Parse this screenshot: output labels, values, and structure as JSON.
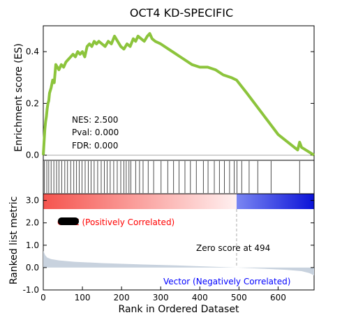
{
  "chart_data": {
    "type": "line",
    "title": "OCT4 KD-SPECIFIC",
    "top_panel": {
      "ylabel": "Enrichment score (ES)",
      "ylim": [
        -0.02,
        0.5
      ],
      "yticks": [
        "0.0",
        "0.2",
        "0.4"
      ],
      "ytick_values": [
        0.0,
        0.2,
        0.4
      ],
      "series": [
        {
          "color": "#8cc43c",
          "x": [
            0,
            2,
            4,
            6,
            8,
            10,
            12,
            14,
            16,
            20,
            24,
            28,
            32,
            36,
            40,
            46,
            52,
            58,
            64,
            70,
            76,
            82,
            88,
            94,
            100,
            106,
            112,
            118,
            124,
            130,
            136,
            142,
            150,
            158,
            166,
            174,
            182,
            190,
            198,
            206,
            214,
            222,
            230,
            236,
            242,
            250,
            258,
            266,
            272,
            278,
            286,
            300,
            320,
            340,
            360,
            380,
            400,
            420,
            440,
            460,
            480,
            494,
            520,
            560,
            600,
            650,
            655,
            660,
            692
          ],
          "values": [
            0.0,
            0.05,
            0.1,
            0.13,
            0.15,
            0.18,
            0.2,
            0.21,
            0.24,
            0.26,
            0.29,
            0.28,
            0.35,
            0.34,
            0.33,
            0.35,
            0.34,
            0.36,
            0.37,
            0.38,
            0.39,
            0.38,
            0.4,
            0.39,
            0.4,
            0.38,
            0.42,
            0.43,
            0.42,
            0.44,
            0.43,
            0.44,
            0.43,
            0.42,
            0.44,
            0.43,
            0.46,
            0.44,
            0.42,
            0.41,
            0.43,
            0.42,
            0.45,
            0.44,
            0.46,
            0.45,
            0.44,
            0.46,
            0.47,
            0.45,
            0.44,
            0.43,
            0.41,
            0.39,
            0.37,
            0.35,
            0.34,
            0.34,
            0.33,
            0.31,
            0.3,
            0.29,
            0.24,
            0.16,
            0.08,
            0.02,
            0.05,
            0.03,
            0.0
          ]
        }
      ],
      "stats": {
        "nes": "NES: 2.500",
        "pval": "Pval: 0.000",
        "fdr": "FDR: 0.000"
      }
    },
    "hit_ranks": [
      3,
      9,
      14,
      20,
      27,
      34,
      40,
      47,
      55,
      62,
      70,
      78,
      85,
      92,
      99,
      107,
      115,
      122,
      130,
      139,
      148,
      156,
      163,
      171,
      180,
      189,
      198,
      206,
      212,
      219,
      224,
      236,
      246,
      255,
      268,
      282,
      301,
      318,
      333,
      347,
      362,
      376,
      391,
      409,
      421,
      437,
      450,
      463,
      476,
      488,
      495,
      507,
      526,
      548,
      582,
      655
    ],
    "bottom_panel": {
      "ylabel": "Ranked list metric",
      "ylim": [
        -1.0,
        3.3
      ],
      "yticks": [
        "3.0",
        "2.0",
        "1.0",
        "0.0",
        "-1.0"
      ],
      "ytick_values": [
        3.0,
        2.0,
        1.0,
        0.0,
        -1.0
      ],
      "positive_label": "CLOE (Positively Correlated)",
      "negative_label": "Vector (Negatively Correlated)",
      "zero_label": "Zero score at 494",
      "zero_rank": 494,
      "metric_x": [
        0,
        5,
        10,
        20,
        40,
        80,
        150,
        250,
        350,
        450,
        494,
        560,
        620,
        660,
        680,
        692
      ],
      "metric_values": [
        0.75,
        0.55,
        0.45,
        0.38,
        0.32,
        0.26,
        0.2,
        0.14,
        0.09,
        0.03,
        0.0,
        -0.05,
        -0.1,
        -0.16,
        -0.25,
        -0.35
      ]
    },
    "xlabel": "Rank in Ordered Dataset",
    "xlim": [
      0,
      692
    ],
    "xticks": [
      "0",
      "100",
      "200",
      "300",
      "400",
      "500",
      "600"
    ],
    "xtick_values": [
      0,
      100,
      200,
      300,
      400,
      500,
      600
    ],
    "colors": {
      "es_line": "#8cc43c",
      "positive": "#ff0000",
      "negative": "#0000ff",
      "metric_fill": "#c8d2de"
    }
  }
}
